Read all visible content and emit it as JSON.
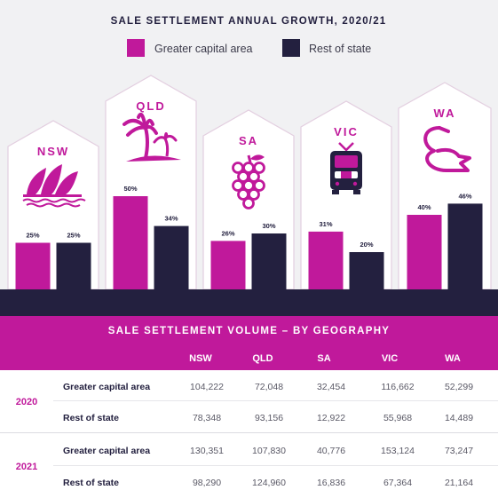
{
  "colors": {
    "greater_capital": "#c0199b",
    "rest_of_state": "#23203f",
    "background": "#f1f1f3"
  },
  "chart_data": {
    "type": "bar",
    "title": "SALE SETTLEMENT ANNUAL GROWTH, 2020/21",
    "categories": [
      "NSW",
      "QLD",
      "SA",
      "VIC",
      "WA"
    ],
    "category_icons": [
      "opera-house-icon",
      "palm-trees-icon",
      "grapes-icon",
      "tram-icon",
      "swan-icon"
    ],
    "series": [
      {
        "name": "Greater capital area",
        "values": [
          25,
          50,
          26,
          31,
          40
        ],
        "labels": [
          "25%",
          "50%",
          "26%",
          "31%",
          "40%"
        ]
      },
      {
        "name": "Rest of state",
        "values": [
          25,
          34,
          30,
          20,
          46
        ],
        "labels": [
          "25%",
          "34%",
          "30%",
          "20%",
          "46%"
        ]
      }
    ],
    "unit": "%",
    "legend_position": "top-center",
    "grid": false
  },
  "table": {
    "title": "SALE SETTLEMENT VOLUME – BY GEOGRAPHY",
    "columns": [
      "NSW",
      "QLD",
      "SA",
      "VIC",
      "WA"
    ],
    "years": [
      {
        "year": "2020",
        "rows": [
          {
            "label": "Greater capital area",
            "values": [
              "104,222",
              "72,048",
              "32,454",
              "116,662",
              "52,299"
            ]
          },
          {
            "label": "Rest of state",
            "values": [
              "78,348",
              "93,156",
              "12,922",
              "55,968",
              "14,489"
            ]
          }
        ]
      },
      {
        "year": "2021",
        "rows": [
          {
            "label": "Greater capital area",
            "values": [
              "130,351",
              "107,830",
              "40,776",
              "153,124",
              "73,247"
            ]
          },
          {
            "label": "Rest of state",
            "values": [
              "98,290",
              "124,960",
              "16,836",
              "67,364",
              "21,164"
            ]
          }
        ]
      }
    ]
  }
}
